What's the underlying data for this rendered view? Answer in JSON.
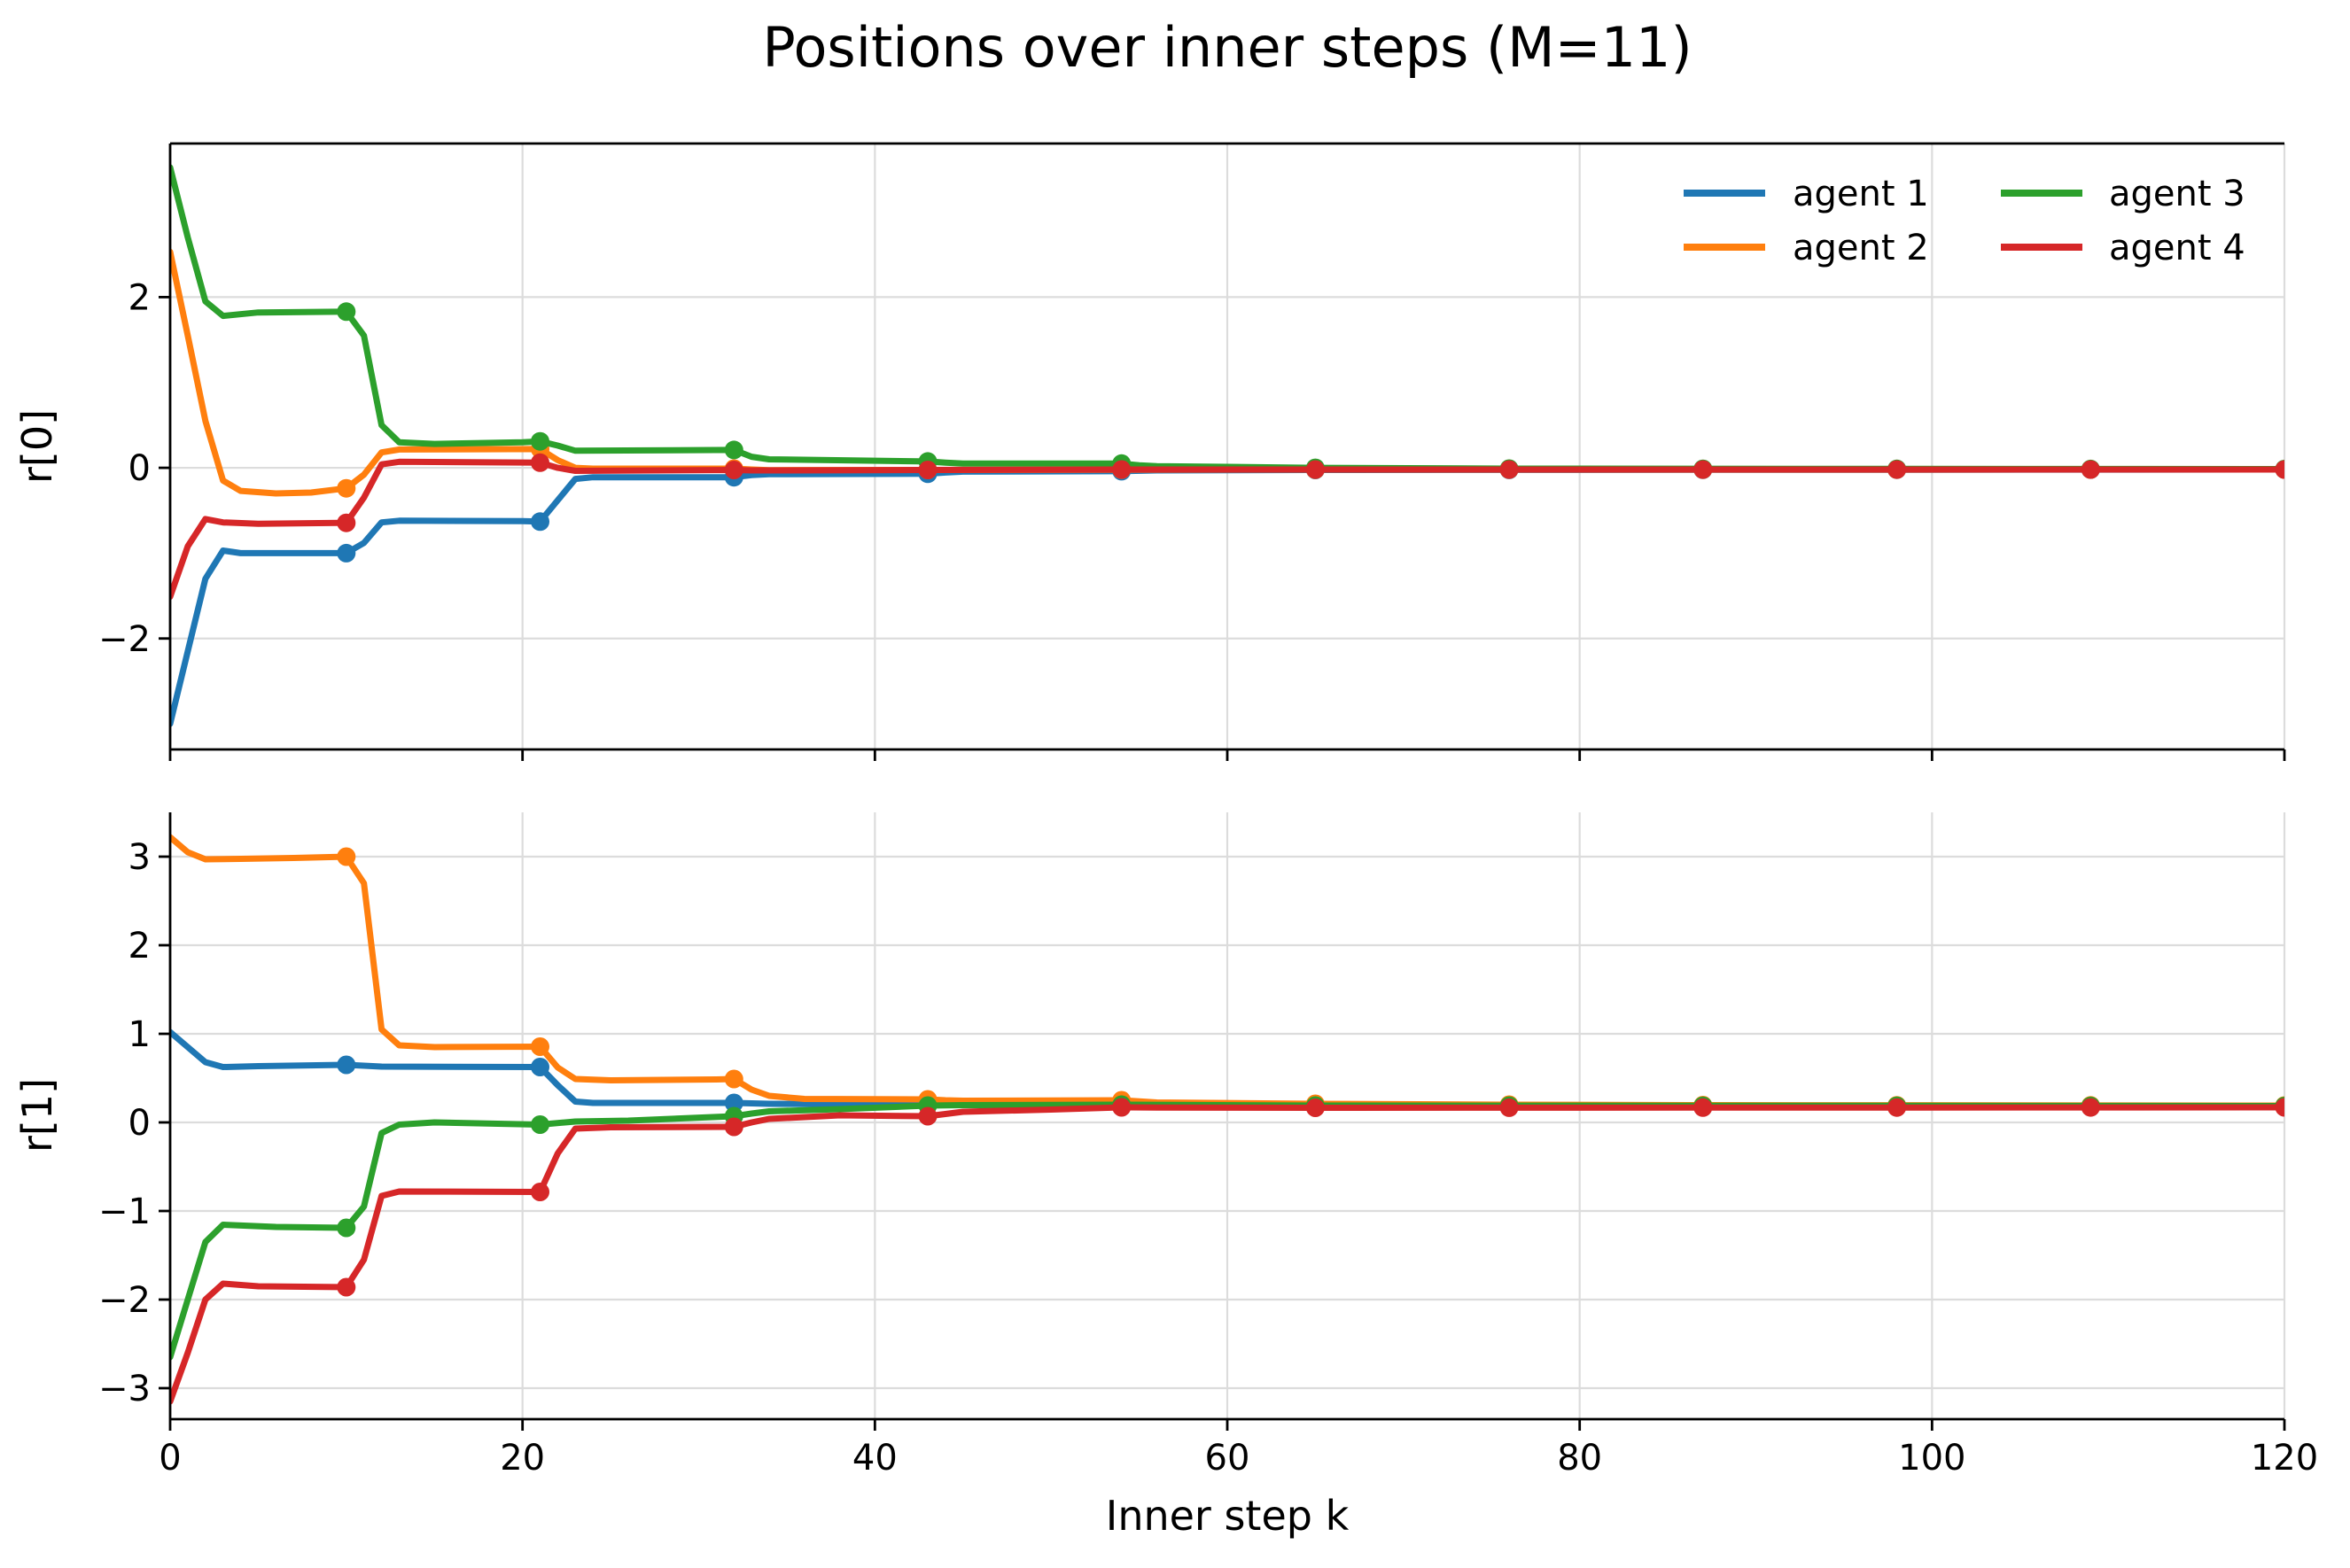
{
  "title": "Positions over inner steps (M=11)",
  "xlabel": "Inner step k",
  "style": {
    "background": "#ffffff",
    "grid_color": "#dcdcdc",
    "spine_color": "#000000",
    "text_color": "#000000"
  },
  "legend": {
    "position": "upper right",
    "columns": 2,
    "frame": false,
    "entries": [
      {
        "label": "agent 1",
        "color": "#1f77b4"
      },
      {
        "label": "agent 2",
        "color": "#ff7f0e"
      },
      {
        "label": "agent 3",
        "color": "#2ca02c"
      },
      {
        "label": "agent 4",
        "color": "#d62728"
      }
    ]
  },
  "chart_data": [
    {
      "type": "line",
      "subplot": "top",
      "ylabel": "r[0]",
      "xlim": [
        0,
        120
      ],
      "ylim": [
        -3.3,
        3.8
      ],
      "xticks": [
        0,
        20,
        40,
        60,
        80,
        100,
        120
      ],
      "xtick_labels": [
        "0",
        "20",
        "40",
        "60",
        "80",
        "100",
        "120"
      ],
      "xtick_labels_visible": false,
      "yticks": [
        2,
        0,
        -2
      ],
      "ytick_labels": [
        "2",
        "0",
        "−2"
      ],
      "grid": true,
      "marker_ks": [
        10,
        21,
        32,
        43,
        54,
        65,
        76,
        87,
        98,
        109,
        120
      ],
      "series": [
        {
          "name": "agent 1",
          "color": "#1f77b4",
          "points": [
            [
              0,
              -3.0
            ],
            [
              1,
              -2.15
            ],
            [
              2,
              -1.3
            ],
            [
              3,
              -0.97
            ],
            [
              4,
              -1.0
            ],
            [
              10,
              -1.0
            ],
            [
              11,
              -0.88
            ],
            [
              12,
              -0.64
            ],
            [
              13,
              -0.62
            ],
            [
              20,
              -0.625
            ],
            [
              21,
              -0.63
            ],
            [
              22,
              -0.38
            ],
            [
              23,
              -0.13
            ],
            [
              24,
              -0.11
            ],
            [
              32,
              -0.11
            ],
            [
              33,
              -0.085
            ],
            [
              34,
              -0.075
            ],
            [
              43,
              -0.07
            ],
            [
              44,
              -0.055
            ],
            [
              45,
              -0.045
            ],
            [
              54,
              -0.04
            ],
            [
              56,
              -0.03
            ],
            [
              65,
              -0.025
            ],
            [
              120,
              -0.02
            ]
          ]
        },
        {
          "name": "agent 2",
          "color": "#ff7f0e",
          "points": [
            [
              0,
              2.53
            ],
            [
              1,
              1.55
            ],
            [
              2,
              0.55
            ],
            [
              3,
              -0.15
            ],
            [
              4,
              -0.27
            ],
            [
              6,
              -0.3
            ],
            [
              8,
              -0.29
            ],
            [
              10,
              -0.24
            ],
            [
              11,
              -0.08
            ],
            [
              12,
              0.18
            ],
            [
              13,
              0.215
            ],
            [
              21,
              0.22
            ],
            [
              22,
              0.09
            ],
            [
              23,
              0.0
            ],
            [
              24,
              -0.01
            ],
            [
              32,
              -0.01
            ],
            [
              33,
              -0.02
            ],
            [
              34,
              -0.027
            ],
            [
              43,
              -0.025
            ],
            [
              54,
              -0.022
            ],
            [
              120,
              -0.02
            ]
          ]
        },
        {
          "name": "agent 3",
          "color": "#2ca02c",
          "points": [
            [
              0,
              3.52
            ],
            [
              1,
              2.7
            ],
            [
              2,
              1.95
            ],
            [
              3,
              1.78
            ],
            [
              5,
              1.82
            ],
            [
              10,
              1.83
            ],
            [
              11,
              1.55
            ],
            [
              12,
              0.5
            ],
            [
              13,
              0.3
            ],
            [
              15,
              0.28
            ],
            [
              20,
              0.3
            ],
            [
              21,
              0.31
            ],
            [
              22,
              0.26
            ],
            [
              23,
              0.2
            ],
            [
              32,
              0.21
            ],
            [
              33,
              0.13
            ],
            [
              34,
              0.1
            ],
            [
              43,
              0.075
            ],
            [
              44,
              0.06
            ],
            [
              45,
              0.05
            ],
            [
              54,
              0.05
            ],
            [
              55,
              0.03
            ],
            [
              56,
              0.02
            ],
            [
              65,
              0.0
            ],
            [
              76,
              -0.01
            ],
            [
              120,
              -0.015
            ]
          ]
        },
        {
          "name": "agent 4",
          "color": "#d62728",
          "points": [
            [
              0,
              -1.51
            ],
            [
              1,
              -0.92
            ],
            [
              2,
              -0.6
            ],
            [
              3,
              -0.64
            ],
            [
              5,
              -0.655
            ],
            [
              10,
              -0.645
            ],
            [
              11,
              -0.35
            ],
            [
              12,
              0.04
            ],
            [
              13,
              0.07
            ],
            [
              21,
              0.06
            ],
            [
              22,
              0.0
            ],
            [
              23,
              -0.035
            ],
            [
              32,
              -0.025
            ],
            [
              33,
              -0.03
            ],
            [
              34,
              -0.03
            ],
            [
              43,
              -0.025
            ],
            [
              54,
              -0.02
            ],
            [
              120,
              -0.02
            ]
          ]
        }
      ]
    },
    {
      "type": "line",
      "subplot": "bottom",
      "ylabel": "r[1]",
      "xlim": [
        0,
        120
      ],
      "ylim": [
        -3.35,
        3.5
      ],
      "xticks": [
        0,
        20,
        40,
        60,
        80,
        100,
        120
      ],
      "xtick_labels": [
        "0",
        "20",
        "40",
        "60",
        "80",
        "100",
        "120"
      ],
      "xtick_labels_visible": true,
      "yticks": [
        3,
        2,
        1,
        0,
        -1,
        -2,
        -3
      ],
      "ytick_labels": [
        "3",
        "2",
        "1",
        "0",
        "−1",
        "−2",
        "−3"
      ],
      "grid": true,
      "marker_ks": [
        10,
        21,
        32,
        43,
        54,
        65,
        76,
        87,
        98,
        109,
        120
      ],
      "series": [
        {
          "name": "agent 1",
          "color": "#1f77b4",
          "points": [
            [
              0,
              1.02
            ],
            [
              1,
              0.85
            ],
            [
              2,
              0.68
            ],
            [
              3,
              0.625
            ],
            [
              5,
              0.635
            ],
            [
              10,
              0.65
            ],
            [
              12,
              0.63
            ],
            [
              21,
              0.625
            ],
            [
              22,
              0.42
            ],
            [
              23,
              0.235
            ],
            [
              24,
              0.22
            ],
            [
              32,
              0.22
            ],
            [
              34,
              0.21
            ],
            [
              43,
              0.2
            ],
            [
              45,
              0.195
            ],
            [
              54,
              0.19
            ],
            [
              65,
              0.185
            ],
            [
              120,
              0.18
            ]
          ]
        },
        {
          "name": "agent 2",
          "color": "#ff7f0e",
          "points": [
            [
              0,
              3.22
            ],
            [
              1,
              3.05
            ],
            [
              2,
              2.97
            ],
            [
              4,
              2.975
            ],
            [
              7,
              2.985
            ],
            [
              10,
              3.0
            ],
            [
              11,
              2.7
            ],
            [
              12,
              1.05
            ],
            [
              13,
              0.87
            ],
            [
              15,
              0.85
            ],
            [
              21,
              0.855
            ],
            [
              22,
              0.62
            ],
            [
              23,
              0.49
            ],
            [
              25,
              0.475
            ],
            [
              31,
              0.485
            ],
            [
              32,
              0.49
            ],
            [
              33,
              0.37
            ],
            [
              34,
              0.3
            ],
            [
              36,
              0.265
            ],
            [
              43,
              0.26
            ],
            [
              44,
              0.25
            ],
            [
              45,
              0.245
            ],
            [
              54,
              0.25
            ],
            [
              56,
              0.225
            ],
            [
              65,
              0.21
            ],
            [
              76,
              0.2
            ],
            [
              87,
              0.195
            ],
            [
              120,
              0.19
            ]
          ]
        },
        {
          "name": "agent 3",
          "color": "#2ca02c",
          "points": [
            [
              0,
              -2.65
            ],
            [
              1,
              -2.0
            ],
            [
              2,
              -1.35
            ],
            [
              3,
              -1.155
            ],
            [
              6,
              -1.18
            ],
            [
              10,
              -1.19
            ],
            [
              11,
              -0.95
            ],
            [
              12,
              -0.12
            ],
            [
              13,
              -0.025
            ],
            [
              15,
              0.0
            ],
            [
              21,
              -0.025
            ],
            [
              23,
              0.01
            ],
            [
              26,
              0.02
            ],
            [
              32,
              0.07
            ],
            [
              33,
              0.1
            ],
            [
              34,
              0.125
            ],
            [
              38,
              0.15
            ],
            [
              43,
              0.19
            ],
            [
              45,
              0.195
            ],
            [
              54,
              0.2
            ],
            [
              65,
              0.19
            ],
            [
              120,
              0.185
            ]
          ]
        },
        {
          "name": "agent 4",
          "color": "#d62728",
          "points": [
            [
              0,
              -3.15
            ],
            [
              1,
              -2.6
            ],
            [
              2,
              -2.0
            ],
            [
              3,
              -1.82
            ],
            [
              5,
              -1.85
            ],
            [
              10,
              -1.86
            ],
            [
              11,
              -1.55
            ],
            [
              12,
              -0.83
            ],
            [
              13,
              -0.78
            ],
            [
              21,
              -0.785
            ],
            [
              22,
              -0.35
            ],
            [
              23,
              -0.07
            ],
            [
              25,
              -0.055
            ],
            [
              32,
              -0.05
            ],
            [
              33,
              0.0
            ],
            [
              34,
              0.04
            ],
            [
              38,
              0.08
            ],
            [
              43,
              0.07
            ],
            [
              45,
              0.12
            ],
            [
              50,
              0.145
            ],
            [
              54,
              0.17
            ],
            [
              56,
              0.168
            ],
            [
              65,
              0.165
            ],
            [
              120,
              0.17
            ]
          ]
        }
      ]
    }
  ]
}
